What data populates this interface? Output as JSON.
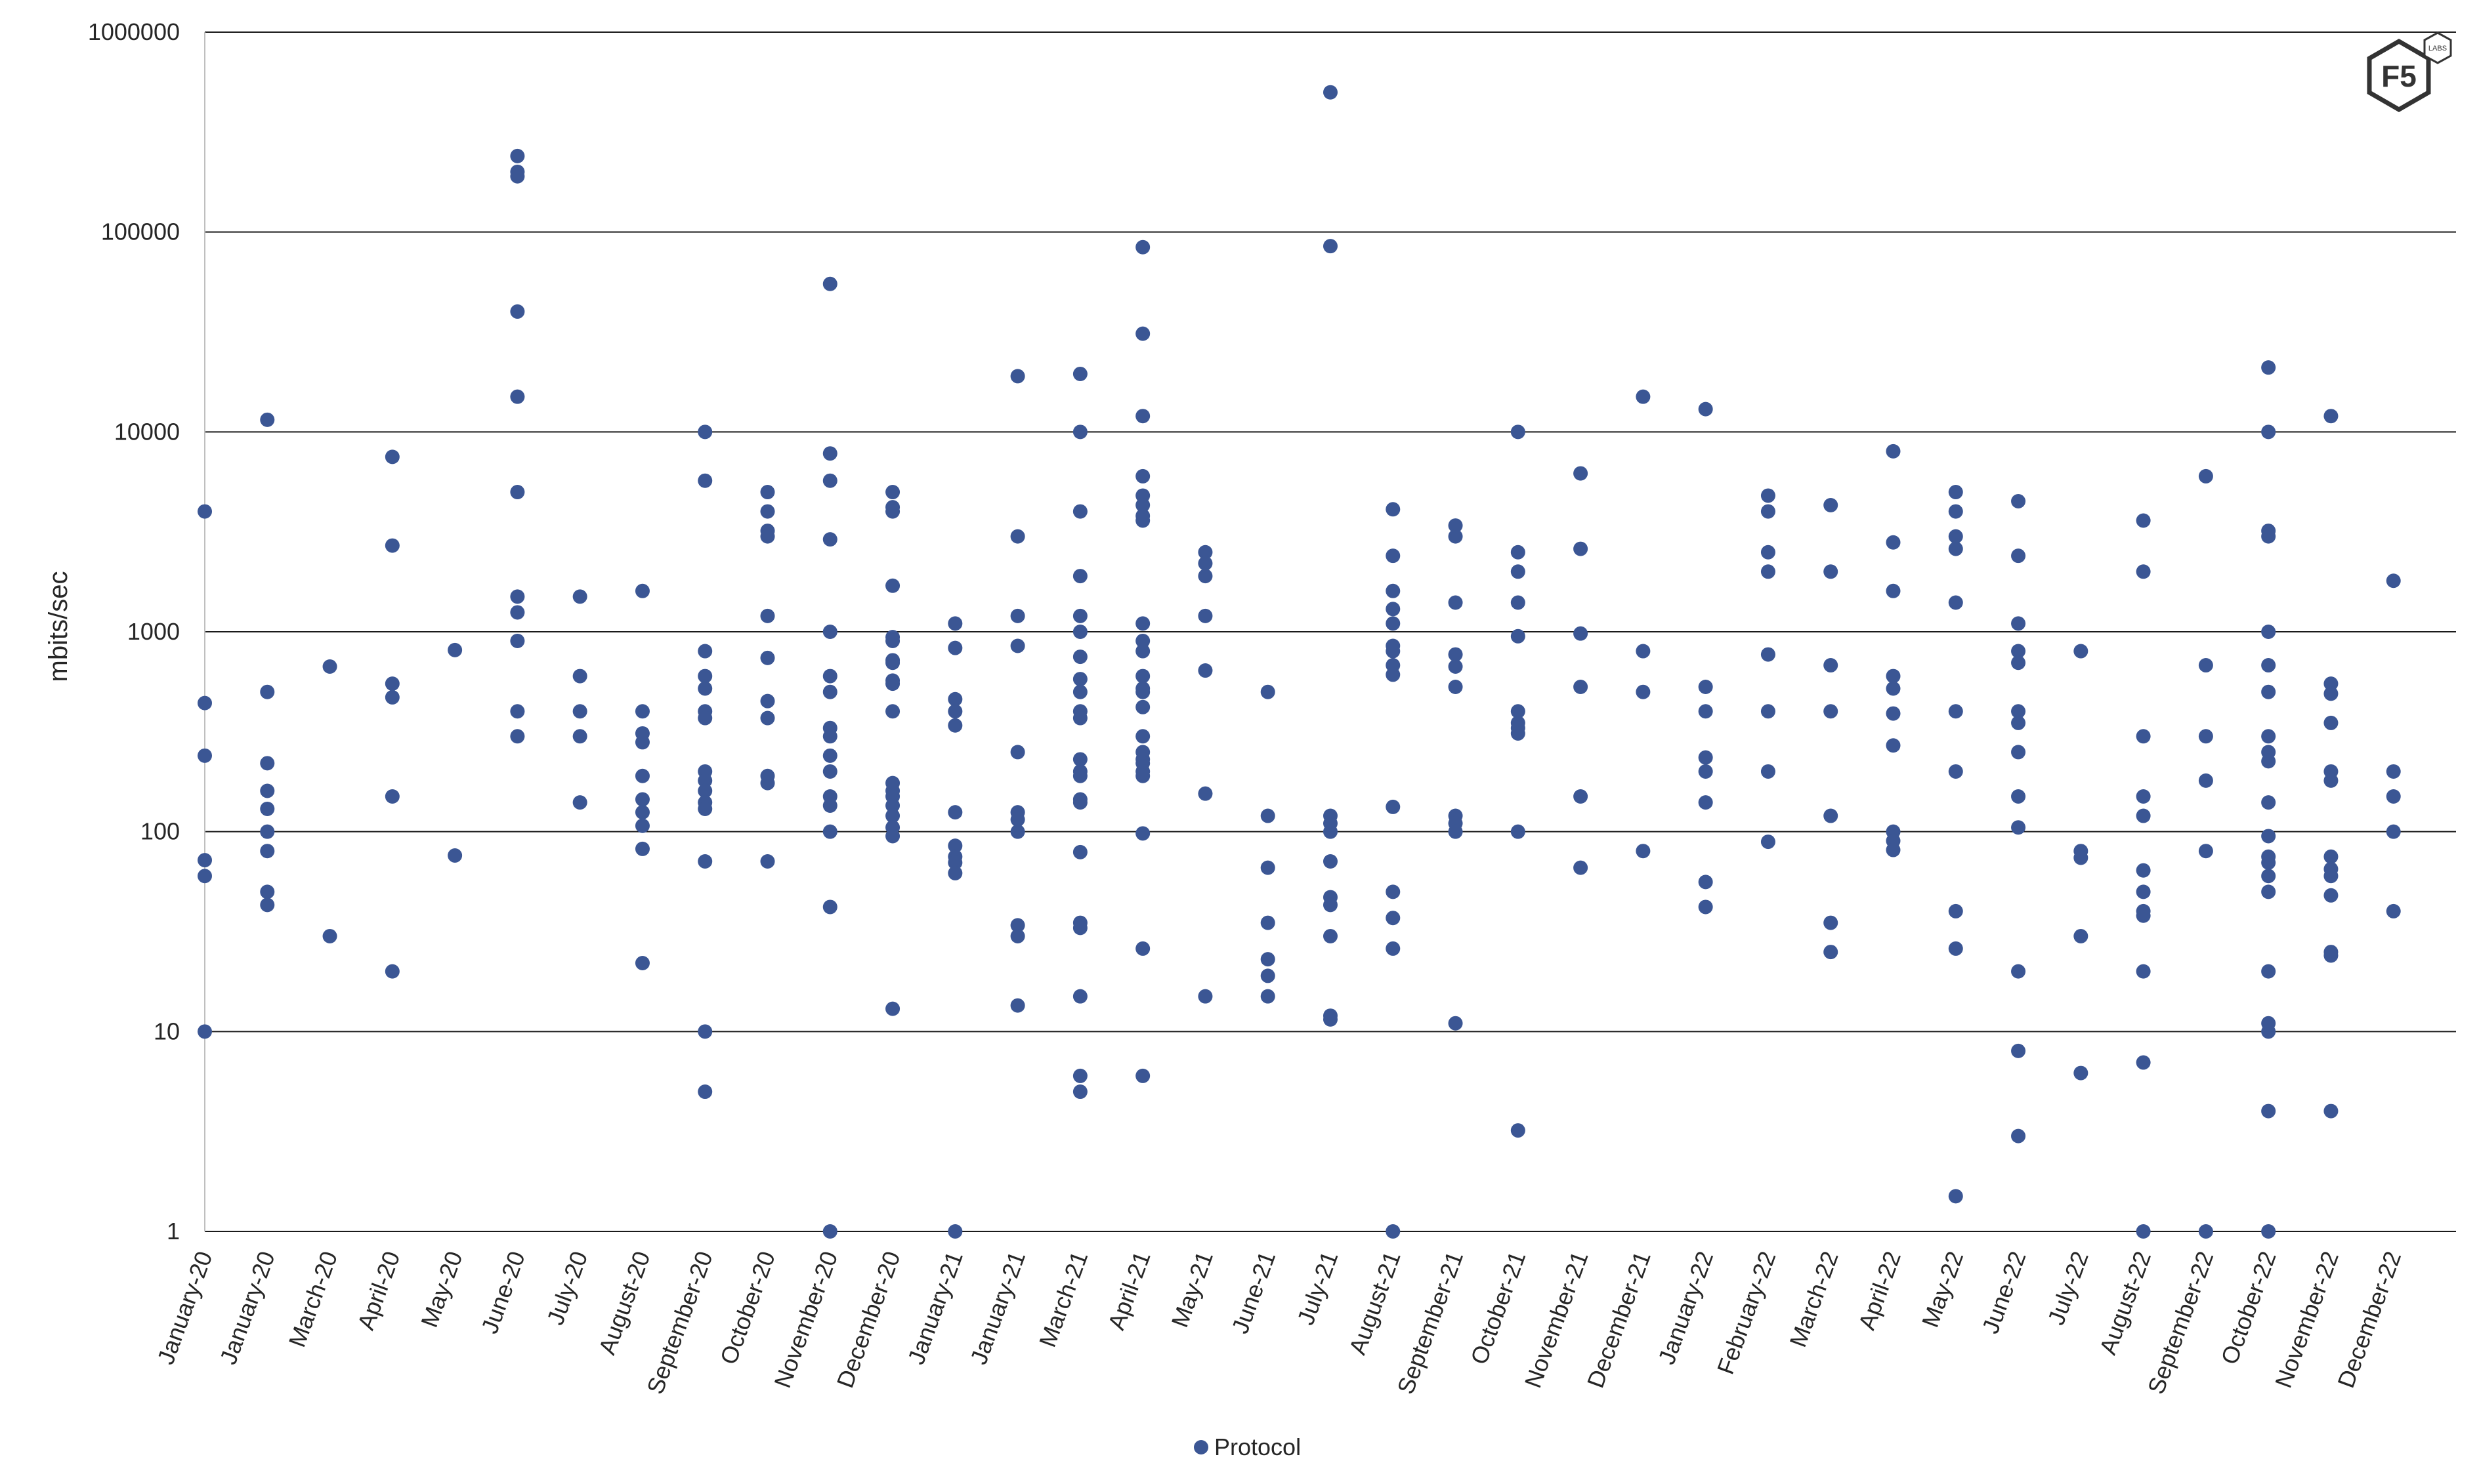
{
  "logo": {
    "text": "F5",
    "badge": "LABS"
  },
  "chart_data": {
    "type": "scatter",
    "ylabel": "mbits/sec",
    "yscale": "log",
    "ylim": [
      1,
      1000000
    ],
    "yticks": [
      "1",
      "10",
      "100",
      "1000",
      "10000",
      "100000",
      "1000000"
    ],
    "grid": true,
    "legend_position": "bottom",
    "categories": [
      "January-20",
      "January-20",
      "March-20",
      "April-20",
      "May-20",
      "June-20",
      "July-20",
      "August-20",
      "September-20",
      "October-20",
      "November-20",
      "December-20",
      "January-21",
      "January-21",
      "March-21",
      "April-21",
      "May-21",
      "June-21",
      "July-21",
      "August-21",
      "September-21",
      "October-21",
      "November-21",
      "December-21",
      "January-22",
      "February-22",
      "March-22",
      "April-22",
      "May-22",
      "June-22",
      "July-22",
      "August-22",
      "September-22",
      "October-22",
      "November-22",
      "December-22"
    ],
    "series": [
      {
        "name": "Protocol",
        "color": "#3b5694",
        "values": [
          [
            4000,
            440,
            240,
            72,
            60,
            10
          ],
          [
            11500,
            500,
            220,
            160,
            130,
            100,
            80,
            50,
            43
          ],
          [
            670,
            30
          ],
          [
            7500,
            2700,
            550,
            470,
            150,
            20
          ],
          [
            810,
            76
          ],
          [
            240000,
            200000,
            190000,
            40000,
            15000,
            5000,
            1500,
            1250,
            900,
            400,
            300
          ],
          [
            1500,
            600,
            400,
            300,
            140
          ],
          [
            1600,
            400,
            310,
            280,
            190,
            145,
            125,
            107,
            82,
            22
          ],
          [
            10000,
            5700,
            800,
            600,
            520,
            400,
            370,
            200,
            180,
            160,
            140,
            130,
            71,
            10,
            5
          ],
          [
            5000,
            4000,
            3200,
            3000,
            1200,
            740,
            450,
            370,
            190,
            175,
            71
          ],
          [
            55000,
            7800,
            5700,
            2900,
            1000,
            600,
            500,
            330,
            300,
            240,
            200,
            150,
            135,
            100,
            42,
            1
          ],
          [
            5000,
            4200,
            4000,
            1700,
            940,
            900,
            720,
            700,
            570,
            550,
            400,
            175,
            160,
            150,
            135,
            120,
            105,
            95,
            13
          ],
          [
            1100,
            830,
            460,
            400,
            340,
            125,
            85,
            75,
            70,
            62,
            1
          ],
          [
            19000,
            3000,
            1200,
            850,
            250,
            125,
            115,
            100,
            34,
            30,
            13.5
          ],
          [
            19500,
            10000,
            4000,
            1900,
            1200,
            1000,
            750,
            580,
            500,
            400,
            370,
            230,
            200,
            190,
            145,
            140,
            79,
            35,
            33,
            15,
            6,
            5
          ],
          [
            84000,
            31000,
            12000,
            6000,
            4800,
            4300,
            3800,
            3600,
            1100,
            900,
            800,
            600,
            520,
            500,
            420,
            300,
            250,
            230,
            220,
            200,
            190,
            98,
            26,
            6
          ],
          [
            2500,
            2200,
            1900,
            1200,
            640,
            155,
            15
          ],
          [
            500,
            120,
            66,
            35,
            23,
            19,
            15
          ],
          [
            500000,
            85000,
            120,
            110,
            100,
            71,
            47,
            43,
            30,
            12,
            11.5
          ],
          [
            4100,
            2400,
            1600,
            1300,
            1100,
            850,
            800,
            680,
            610,
            133,
            50,
            37,
            26,
            1
          ],
          [
            3400,
            3000,
            1400,
            770,
            670,
            530,
            120,
            110,
            100,
            11
          ],
          [
            10000,
            2500,
            2000,
            1400,
            950,
            400,
            350,
            330,
            310,
            100,
            3.2
          ],
          [
            6200,
            2600,
            980,
            530,
            150,
            66
          ],
          [
            15000,
            800,
            500,
            80
          ],
          [
            13000,
            530,
            400,
            235,
            200,
            140,
            56,
            42
          ],
          [
            4800,
            4000,
            2500,
            2000,
            770,
            400,
            200,
            89
          ],
          [
            4300,
            2000,
            680,
            400,
            120,
            35,
            25
          ],
          [
            8000,
            2800,
            1600,
            600,
            520,
            390,
            270,
            100,
            90,
            81
          ],
          [
            5000,
            4000,
            3000,
            2600,
            1400,
            400,
            200,
            40,
            26,
            1.5
          ],
          [
            4500,
            2400,
            1100,
            800,
            700,
            400,
            350,
            250,
            150,
            105,
            20,
            8,
            3
          ],
          [
            800,
            80,
            74,
            30,
            6.2
          ],
          [
            3600,
            2000,
            300,
            150,
            120,
            64,
            50,
            40,
            38,
            20,
            7,
            1
          ],
          [
            6000,
            680,
            300,
            180,
            80,
            1
          ],
          [
            21000,
            10000,
            3200,
            3000,
            1000,
            680,
            500,
            300,
            250,
            225,
            140,
            95,
            75,
            70,
            60,
            50,
            20,
            11,
            10,
            4,
            1
          ],
          [
            12000,
            550,
            490,
            350,
            200,
            180,
            75,
            65,
            60,
            48,
            25,
            24,
            4
          ],
          [
            1800,
            200,
            150,
            100,
            40
          ]
        ]
      }
    ]
  }
}
